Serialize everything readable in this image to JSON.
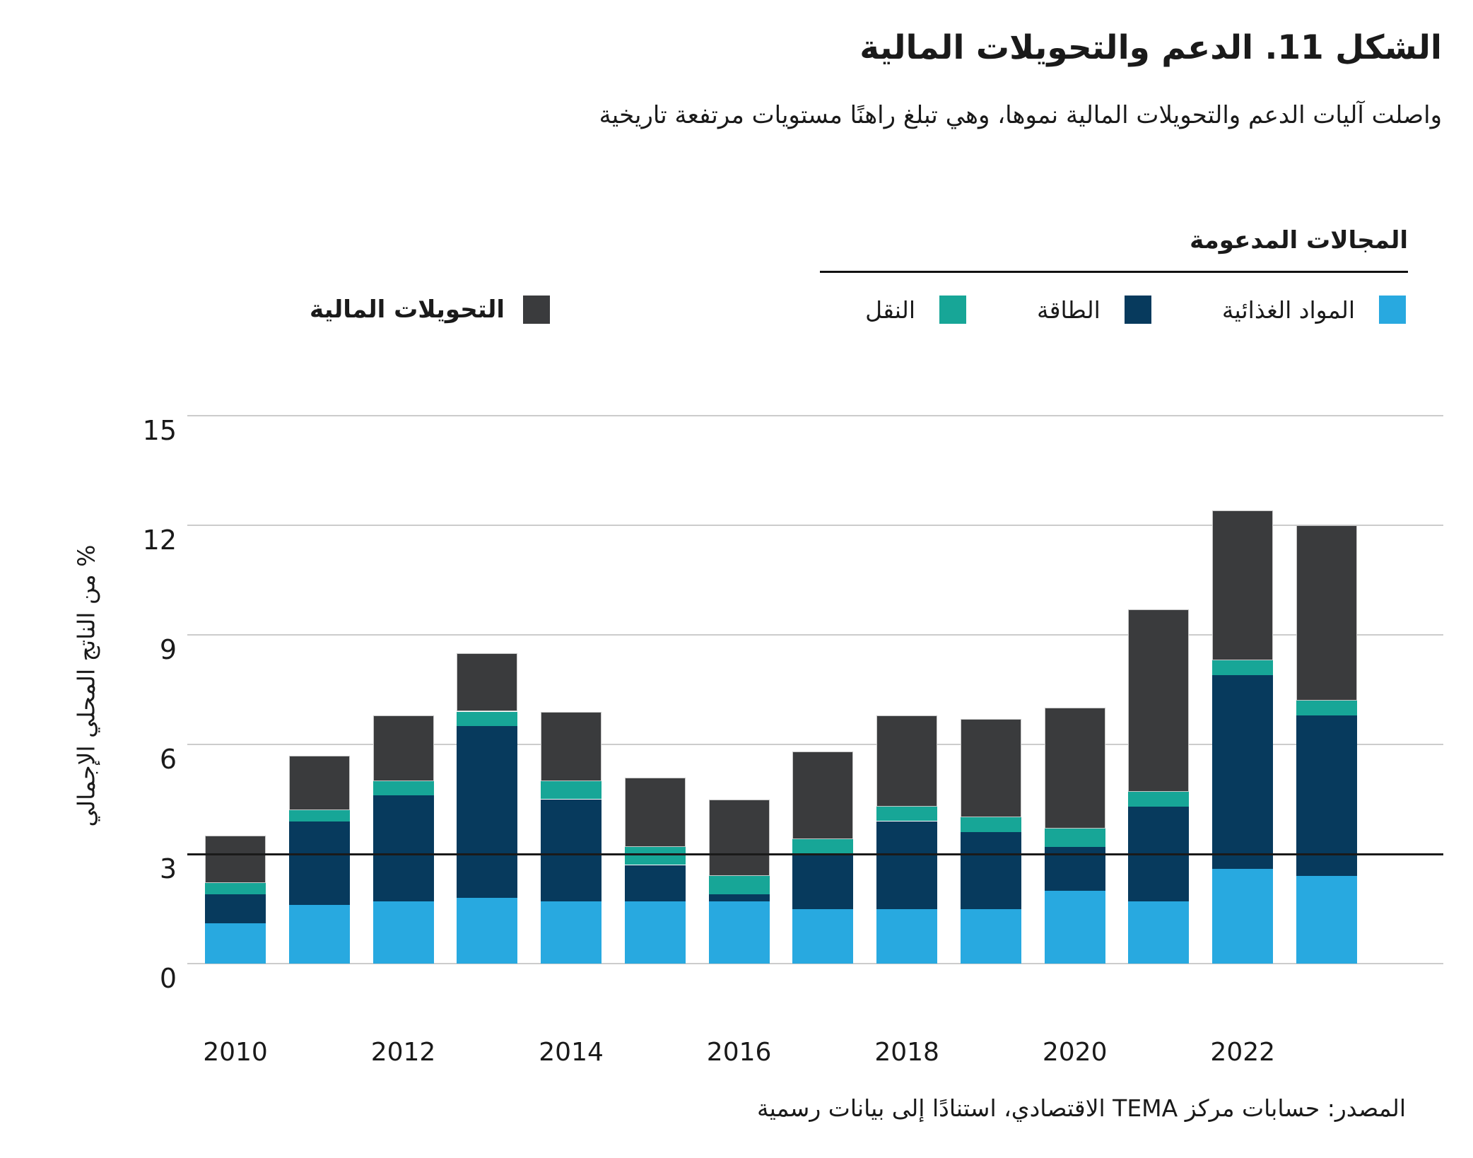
{
  "title": "الشكل 11. الدعم والتحويلات المالية",
  "subtitle": "واصلت آليات الدعم والتحويلات المالية نموها، وهي تبلغ راهنًا مستويات مرتفعة تاريخية",
  "legend": {
    "group_title": "المجالات المدعومة",
    "items": [
      {
        "key": "food",
        "label": "المواد الغذائية",
        "color": "#28A9E0"
      },
      {
        "key": "energy",
        "label": "الطاقة",
        "color": "#073A5D"
      },
      {
        "key": "transport",
        "label": "النقل",
        "color": "#17A697"
      }
    ],
    "transfers": {
      "key": "transfers",
      "label": "التحويلات المالية",
      "color": "#3A3B3D"
    }
  },
  "chart_data": {
    "type": "bar",
    "stacked": true,
    "title": "الشكل 11. الدعم والتحويلات المالية",
    "categories": [
      2010,
      2011,
      2012,
      2013,
      2014,
      2015,
      2016,
      2017,
      2018,
      2019,
      2020,
      2021,
      2022,
      2023
    ],
    "series": [
      {
        "name": "المواد الغذائية",
        "color": "#28A9E0",
        "values": [
          1.1,
          1.6,
          1.7,
          1.8,
          1.7,
          1.7,
          1.7,
          1.5,
          1.5,
          1.5,
          2.0,
          1.7,
          2.6,
          2.4
        ]
      },
      {
        "name": "الطاقة",
        "color": "#073A5D",
        "values": [
          0.8,
          2.3,
          2.9,
          4.7,
          2.8,
          1.0,
          0.2,
          1.5,
          2.4,
          2.1,
          1.2,
          2.6,
          5.3,
          4.4
        ]
      },
      {
        "name": "النقل",
        "color": "#17A697",
        "values": [
          0.3,
          0.3,
          0.4,
          0.4,
          0.5,
          0.5,
          0.5,
          0.4,
          0.4,
          0.4,
          0.5,
          0.4,
          0.4,
          0.4
        ]
      },
      {
        "name": "التحويلات المالية",
        "color": "#3A3B3D",
        "values": [
          1.3,
          1.5,
          1.8,
          1.6,
          1.9,
          1.9,
          2.1,
          2.4,
          2.5,
          2.7,
          3.3,
          5.0,
          4.1,
          4.8
        ]
      }
    ],
    "totals": [
      3.5,
      5.7,
      6.8,
      8.5,
      6.9,
      5.1,
      4.5,
      5.8,
      6.8,
      6.7,
      7.0,
      9.7,
      12.4,
      12.0
    ],
    "xlabel": "",
    "ylabel": "% من الناتج المحلي الإجمالي",
    "ylim": [
      0,
      15
    ],
    "yticks": [
      0,
      3,
      6,
      9,
      12,
      15
    ],
    "emphasis_gridline": 3,
    "xtick_labels": [
      "2010",
      "2012",
      "2014",
      "2016",
      "2018",
      "2020",
      "2022"
    ],
    "grid": "horizontal",
    "legend_position": "top"
  },
  "source": "المصدر: حسابات مركز TEMA الاقتصادي، استنادًا إلى بيانات رسمية"
}
